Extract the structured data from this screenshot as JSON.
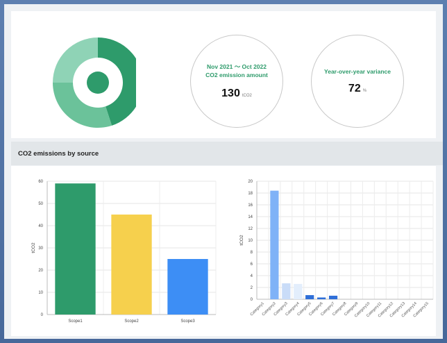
{
  "summary": {
    "period_line1": "Nov 2021 ～ Oct 2022",
    "period_line2": "CO2 emission amount",
    "emission_value": "130",
    "emission_unit": "tCO2",
    "variance_title": "Year-over-year variance",
    "variance_value": "72",
    "variance_unit": "%"
  },
  "colors": {
    "green_dark": "#2e9b6b",
    "green_mid": "#6bc29a",
    "green_light": "#8fd3b6",
    "yellow": "#f6d04d",
    "blue": "#3d8ef5",
    "blue_light": "#7fb2f7",
    "blue_pale": "#c9dcf8"
  },
  "section": {
    "title": "CO2 emissions by source"
  },
  "chart_data": [
    {
      "type": "pie",
      "donut": true,
      "slices": [
        {
          "value": 45,
          "color": "#2e9b6b"
        },
        {
          "value": 30,
          "color": "#6bc29a"
        },
        {
          "value": 25,
          "color": "#8fd3b6"
        }
      ]
    },
    {
      "type": "bar",
      "categories": [
        "Scope1",
        "Scope2",
        "Scope3"
      ],
      "values": [
        59,
        45,
        25
      ],
      "colors": [
        "#2e9b6b",
        "#f6d04d",
        "#3d8ef5"
      ],
      "ylabel": "tCO2",
      "ylim": [
        0,
        60
      ],
      "yticks": [
        "0",
        "10",
        "20",
        "30",
        "40",
        "50",
        "60"
      ],
      "grid": true
    },
    {
      "type": "bar",
      "categories": [
        "Category1",
        "Category2",
        "Category3",
        "Category4",
        "Category5",
        "Category6",
        "Category7",
        "Category8",
        "Category9",
        "Category10",
        "Category11",
        "Category12",
        "Category13",
        "Category14",
        "Category15"
      ],
      "values": [
        0,
        18.4,
        2.7,
        2.6,
        0.7,
        0.3,
        0.6,
        0,
        0,
        0,
        0,
        0,
        0,
        0,
        0
      ],
      "colors": [
        "#7fb2f7",
        "#7fb2f7",
        "#c9dcf8",
        "#e3eefc",
        "#2f6fd8",
        "#2f6fd8",
        "#2f6fd8",
        "#7fb2f7",
        "#7fb2f7",
        "#7fb2f7",
        "#7fb2f7",
        "#7fb2f7",
        "#7fb2f7",
        "#7fb2f7",
        "#7fb2f7"
      ],
      "ylabel": "tCO2",
      "ylim": [
        0,
        20
      ],
      "yticks": [
        "0",
        "2",
        "4",
        "6",
        "8",
        "10",
        "12",
        "14",
        "16",
        "18",
        "20"
      ],
      "grid": true
    }
  ]
}
